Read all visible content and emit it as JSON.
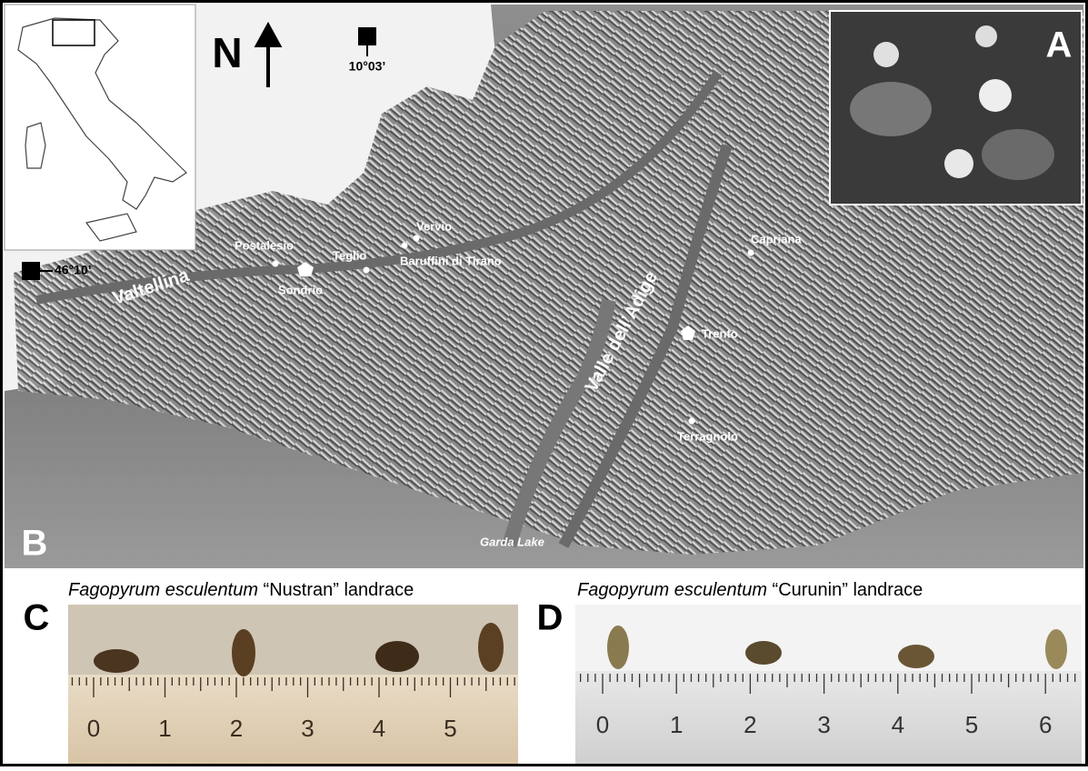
{
  "map": {
    "north": "N",
    "longitude": "10°03’",
    "latitude": "46°10’",
    "panel_a": "A",
    "panel_b": "B",
    "places": {
      "valtellina": "Valtellina",
      "postalesio": "Postalesio",
      "sondrio": "Sondrio",
      "teglio": "Teglio",
      "vervio": "Vervio",
      "baruffini": "Baruffini di Tirano",
      "adige": "Valle dell’Adige",
      "capriana": "Capriana",
      "trento": "Trento",
      "terragnolo": "Terragnolo",
      "garda": "Garda Lake"
    }
  },
  "panel_c": {
    "label": "C",
    "species": "Fagopyrum esculentum",
    "landrace_name": "“Nustran”",
    "landrace": "landrace",
    "ruler": [
      0,
      1,
      2,
      3,
      4,
      5
    ]
  },
  "panel_d": {
    "label": "D",
    "species": "Fagopyrum esculentum",
    "landrace_name": "“Curunin”",
    "landrace": "landrace",
    "ruler": [
      0,
      1,
      2,
      3,
      4,
      5,
      6
    ]
  }
}
